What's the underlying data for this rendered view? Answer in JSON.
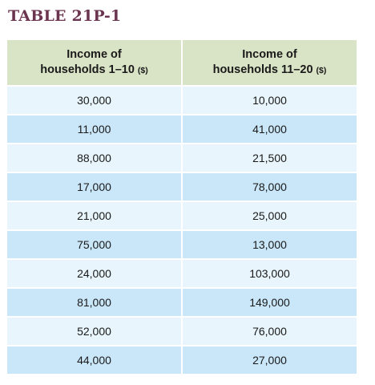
{
  "title": "TABLE 21P-1",
  "columns": [
    {
      "line1": "Income of",
      "line2": "households 1–10",
      "unit": "($)"
    },
    {
      "line1": "Income of",
      "line2": "households 11–20",
      "unit": "($)"
    }
  ],
  "rows": [
    [
      "30,000",
      "10,000"
    ],
    [
      "11,000",
      "41,000"
    ],
    [
      "88,000",
      "21,500"
    ],
    [
      "17,000",
      "78,000"
    ],
    [
      "21,000",
      "25,000"
    ],
    [
      "75,000",
      "13,000"
    ],
    [
      "24,000",
      "103,000"
    ],
    [
      "81,000",
      "149,000"
    ],
    [
      "52,000",
      "76,000"
    ],
    [
      "44,000",
      "27,000"
    ]
  ],
  "colors": {
    "title": "#6b3550",
    "header_bg": "#d9e3c5",
    "row_light": "#e8f5fc",
    "row_dark": "#c9e7f8"
  }
}
